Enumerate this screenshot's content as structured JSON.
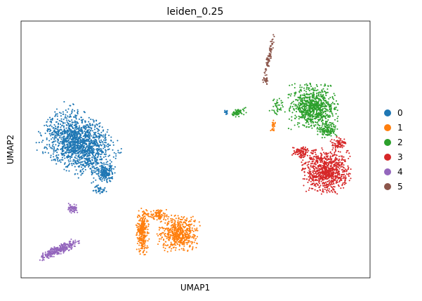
{
  "chart_data": {
    "type": "scatter",
    "title": "leiden_0.25",
    "xlabel": "UMAP1",
    "ylabel": "UMAP2",
    "xticks": [],
    "yticks": [],
    "grid": false,
    "legend_position": "right",
    "legend": [
      "0",
      "1",
      "2",
      "3",
      "4",
      "5"
    ],
    "colors": [
      "#1f77b4",
      "#ff7f0e",
      "#2ca02c",
      "#d62728",
      "#9467bd",
      "#8c564b"
    ]
  }
}
